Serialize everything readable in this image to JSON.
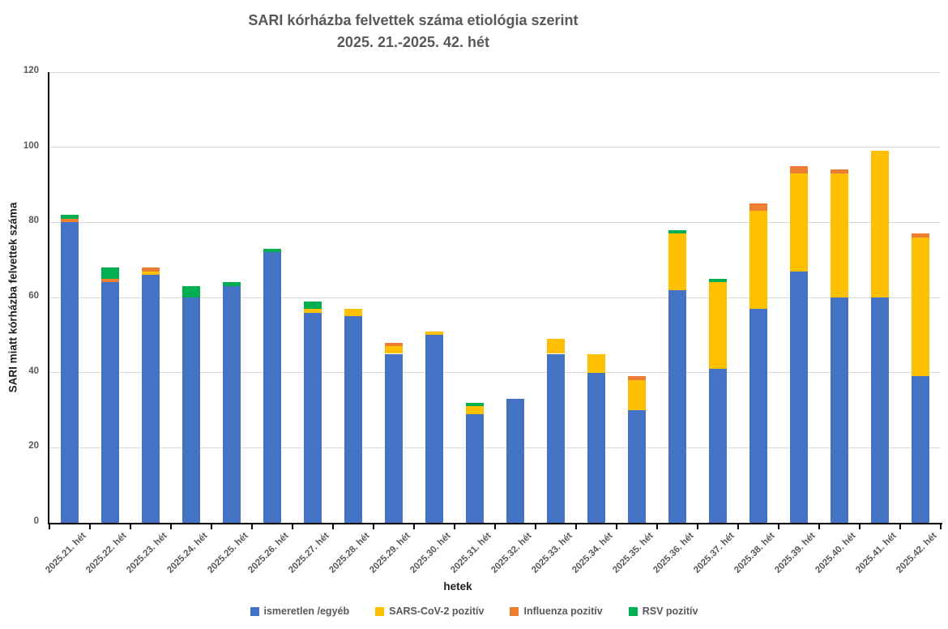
{
  "chart_data": {
    "type": "bar",
    "stacked": true,
    "title": "SARI kórházba felvettek száma etiológia szerint",
    "subtitle": "2025. 21.-2025. 42. hét",
    "xlabel": "hetek",
    "ylabel": "SARI miatt kórházba felvettek száma",
    "ylim": [
      0,
      120
    ],
    "ytick_step": 20,
    "grid": true,
    "legend_position": "bottom",
    "colors": {
      "grid": "#D9D9D9",
      "axis": "#000000",
      "tick_text": "#595959",
      "title_text": "#595959"
    },
    "categories": [
      "2025.21. hét",
      "2025.22. hét",
      "2025.23. hét",
      "2025.24. hét",
      "2025.25. hét",
      "2025.26. hét",
      "2025.27. hét",
      "2025.28. hét",
      "2025.29. hét",
      "2025.30. hét",
      "2025.31. hét",
      "2025.32. hét",
      "2025.33. hét",
      "2025.34. hét",
      "2025.35. hét",
      "2025.36. hét",
      "2025.37. hét",
      "2025.38. hét",
      "2025.39. hét",
      "2025.40. hét",
      "2025.41. hét",
      "2025.42. hét"
    ],
    "series": [
      {
        "name": "ismeretlen /egyéb",
        "color": "#4472C4",
        "values": [
          80,
          64,
          66,
          60,
          63,
          72,
          56,
          55,
          45,
          50,
          29,
          33,
          45,
          40,
          30,
          62,
          41,
          57,
          67,
          60,
          60,
          39
        ]
      },
      {
        "name": "SARS-CoV-2 pozitív",
        "color": "#FFC000",
        "values": [
          0,
          0,
          1,
          0,
          0,
          0,
          1,
          2,
          2,
          1,
          2,
          0,
          4,
          5,
          8,
          15,
          23,
          26,
          26,
          33,
          39,
          37
        ]
      },
      {
        "name": "Influenza pozitív",
        "color": "#ED7D31",
        "values": [
          1,
          1,
          1,
          0,
          0,
          0,
          0,
          0,
          1,
          0,
          0,
          0,
          0,
          0,
          1,
          0,
          0,
          2,
          2,
          1,
          0,
          1
        ]
      },
      {
        "name": "RSV pozitív",
        "color": "#00B050",
        "values": [
          1,
          3,
          0,
          3,
          1,
          1,
          2,
          0,
          0,
          0,
          1,
          0,
          0,
          0,
          0,
          1,
          1,
          0,
          0,
          0,
          0,
          0
        ]
      }
    ]
  }
}
